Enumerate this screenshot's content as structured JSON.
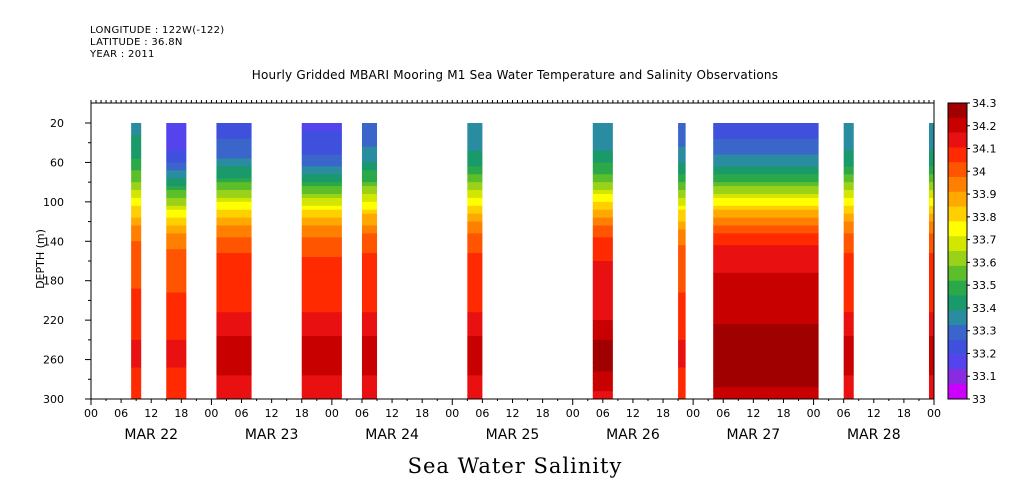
{
  "header": {
    "longitude": "LONGITUDE : 122W(-122)",
    "latitude": "LATITUDE : 36.8N",
    "year": "YEAR : 2011"
  },
  "chart_data": {
    "type": "heatmap",
    "title": "Hourly Gridded MBARI Mooring M1 Sea Water Temperature and Salinity Observations",
    "variable_title": "Sea Water Salinity",
    "ylabel": "DEPTH (m)",
    "xlabel": "",
    "ylim": [
      300,
      0
    ],
    "y_ticks": [
      20,
      60,
      100,
      140,
      180,
      220,
      260,
      300
    ],
    "x_range_hours": [
      0,
      168
    ],
    "x_tick_labels": [
      "00",
      "06",
      "12",
      "18",
      "00",
      "06",
      "12",
      "18",
      "00",
      "06",
      "12",
      "18",
      "00",
      "06",
      "12",
      "18",
      "00",
      "06",
      "12",
      "18",
      "00",
      "06",
      "12",
      "18",
      "00",
      "06",
      "12",
      "18",
      "00"
    ],
    "day_labels": [
      "MAR 22",
      "MAR 23",
      "MAR 24",
      "MAR 25",
      "MAR 26",
      "MAR 27",
      "MAR 28"
    ],
    "colorbar": {
      "min": 33.0,
      "max": 34.3,
      "labels": [
        "34.3",
        "34.2",
        "34.1",
        "34",
        "33.9",
        "33.8",
        "33.7",
        "33.6",
        "33.5",
        "33.4",
        "33.3",
        "33.2",
        "33.1",
        "33"
      ],
      "colors": [
        "#cc00ff",
        "#8a2be2",
        "#5544ee",
        "#3f50dd",
        "#3a66cc",
        "#2a8ca0",
        "#1a9a6a",
        "#2aa84a",
        "#5cbf2a",
        "#9ad21a",
        "#d2e600",
        "#ffff00",
        "#ffd000",
        "#ffa800",
        "#ff8000",
        "#ff5500",
        "#ff2a00",
        "#e81010",
        "#c80000",
        "#a00000"
      ]
    },
    "data_segments_hours": [
      {
        "start": 8,
        "end": 10,
        "surface_salinity": 33.35,
        "deep_salinity": 34.15
      },
      {
        "start": 15,
        "end": 19,
        "surface_salinity": 33.1,
        "deep_salinity": 34.15
      },
      {
        "start": 25,
        "end": 32,
        "surface_salinity": 33.2,
        "deep_salinity": 34.2
      },
      {
        "start": 42,
        "end": 50,
        "surface_salinity": 33.15,
        "deep_salinity": 34.2
      },
      {
        "start": 54,
        "end": 57,
        "surface_salinity": 33.25,
        "deep_salinity": 34.2
      },
      {
        "start": 75,
        "end": 78,
        "surface_salinity": 33.3,
        "deep_salinity": 34.2
      },
      {
        "start": 100,
        "end": 104,
        "surface_salinity": 33.3,
        "deep_salinity": 34.25
      },
      {
        "start": 117,
        "end": 118.5,
        "surface_salinity": 33.25,
        "deep_salinity": 34.15
      },
      {
        "start": 124,
        "end": 145,
        "surface_salinity": 33.2,
        "deep_salinity": 34.3
      },
      {
        "start": 150,
        "end": 152,
        "surface_salinity": 33.3,
        "deep_salinity": 34.2
      },
      {
        "start": 167,
        "end": 168,
        "surface_salinity": 33.3,
        "deep_salinity": 34.2
      }
    ],
    "grid": false,
    "legend": "right"
  }
}
